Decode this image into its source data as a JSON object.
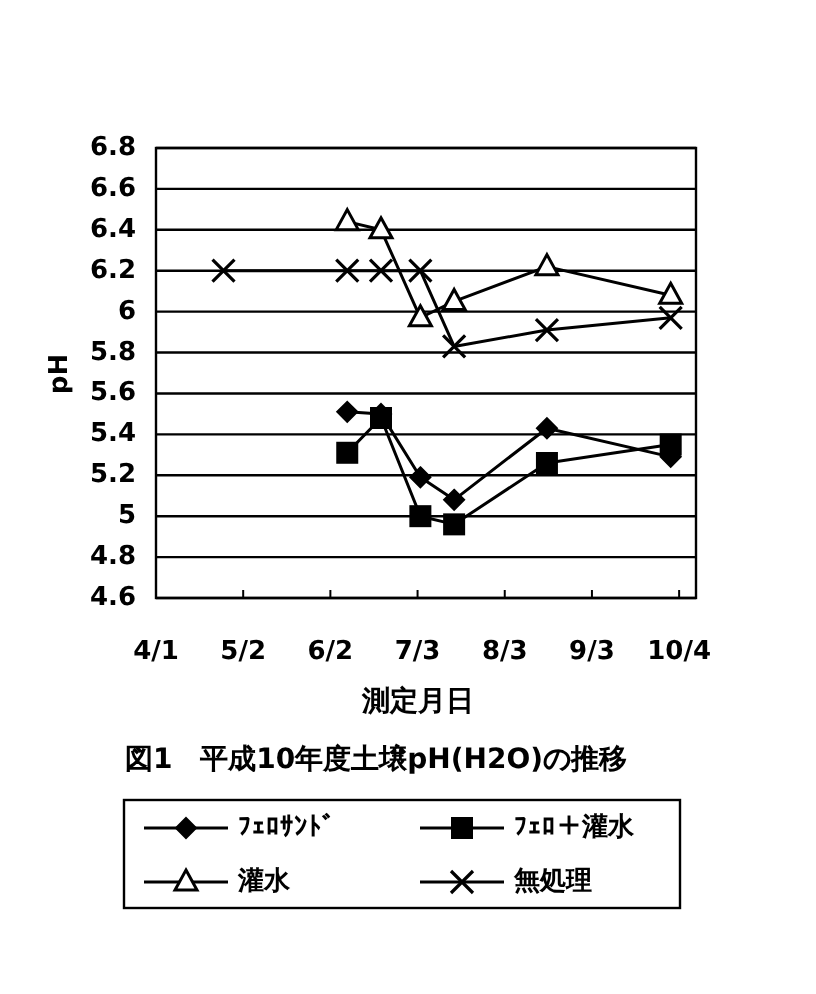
{
  "chart_data": {
    "type": "line",
    "title": "図1　平成10年度土壌pH(H2O)の推移",
    "xlabel": "測定月日",
    "ylabel": "pH",
    "xlim": [
      "--04-01",
      "--10-10"
    ],
    "xticks": [
      {
        "value": "--04-01",
        "label": "4/1"
      },
      {
        "value": "--05-02",
        "label": "5/2"
      },
      {
        "value": "--06-02",
        "label": "6/2"
      },
      {
        "value": "--07-03",
        "label": "7/3"
      },
      {
        "value": "--08-03",
        "label": "8/3"
      },
      {
        "value": "--09-03",
        "label": "9/3"
      },
      {
        "value": "--10-04",
        "label": "10/4"
      }
    ],
    "ylim": [
      4.6,
      6.8
    ],
    "yticks": [
      4.6,
      4.8,
      5,
      5.2,
      5.4,
      5.6,
      5.8,
      6,
      6.2,
      6.4,
      6.6,
      6.8
    ],
    "grid": "y",
    "legend": "bottom",
    "line_style": "solid",
    "series": [
      {
        "name": "ﾌｪﾛｻﾝﾄﾞ",
        "color": "#000000",
        "marker": "diamond",
        "x": [
          "--06-08",
          "--06-20",
          "--07-04",
          "--07-16",
          "--08-18",
          "--10-01"
        ],
        "values": [
          5.51,
          5.5,
          5.19,
          5.08,
          5.43,
          5.29
        ]
      },
      {
        "name": "ﾌｪﾛ＋灌水",
        "color": "#000000",
        "marker": "square",
        "x": [
          "--06-08",
          "--06-20",
          "--07-04",
          "--07-16",
          "--08-18",
          "--10-01"
        ],
        "values": [
          5.31,
          5.48,
          5.0,
          4.96,
          5.26,
          5.35
        ]
      },
      {
        "name": "灌水",
        "color": "#000000",
        "marker": "triangle",
        "x": [
          "--06-08",
          "--06-20",
          "--07-04",
          "--07-16",
          "--08-18",
          "--10-01"
        ],
        "values": [
          6.44,
          6.4,
          5.97,
          6.05,
          6.22,
          6.08
        ]
      },
      {
        "name": "無処理",
        "color": "#000000",
        "marker": "cross",
        "x": [
          "--04-25",
          "--06-08",
          "--06-20",
          "--07-04",
          "--07-16",
          "--08-18",
          "--10-01"
        ],
        "values": [
          6.2,
          6.2,
          6.2,
          6.2,
          5.83,
          5.91,
          5.97
        ]
      }
    ]
  }
}
